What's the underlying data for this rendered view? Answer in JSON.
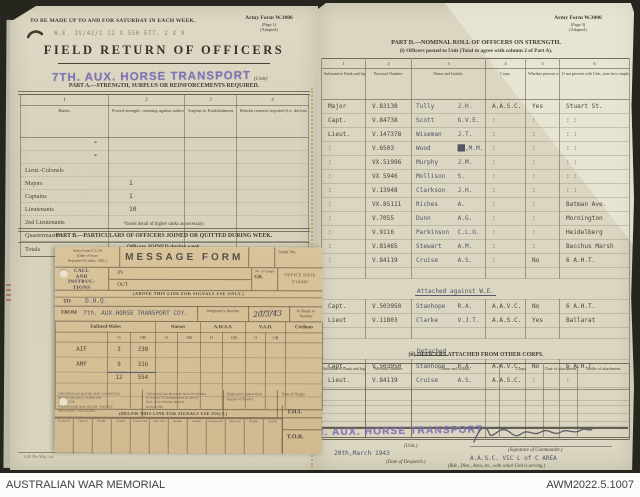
{
  "archive_bar": {
    "institution": "AUSTRALIAN WAR MEMORIAL",
    "accession": "AWM2022.5.1007"
  },
  "colors": {
    "stamp_purple": "#7d6cb6",
    "paper": "#d8d4be",
    "message_paper": "#d5bd96"
  },
  "left_page": {
    "top_note": "TO BE MADE UP TO AND FOR SATURDAY IN EACH WEEK.",
    "form_ref": {
      "no": "Army Form W.3006",
      "page": "(Page 1)",
      "adapted": "(Adapted)"
    },
    "pencil_note": "W.E. IV/42/1   12 X 550      ETT. 2 X 9",
    "title": "FIELD RETURN OF OFFICERS",
    "unit_stamp": "7TH. AUX. HORSE TRANSPORT",
    "unit_suffix": "(Unit)",
    "part_a": {
      "heading": "PART A.—STRENGTH, SURPLUS OR REINFORCEMENTS REQUIRED.",
      "col_numbers": [
        "1",
        "2",
        "3",
        "4"
      ],
      "col_labels": [
        "Ranks.",
        "Posted strength, counting against authorized establishment (excluding attached).",
        "Surplus to Establishment.",
        "Reinforcements required (i.e. deficits on establishment)."
      ],
      "leader_dots": "....      ....      ....",
      "rows": [
        {
          "rank": "",
          "star": "*",
          "posted": ""
        },
        {
          "rank": "",
          "star": "*",
          "posted": ""
        },
        {
          "rank": "Lieut.-Colonels",
          "posted": ""
        },
        {
          "rank": "Majors",
          "posted": "1"
        },
        {
          "rank": "Captains",
          "posted": "1"
        },
        {
          "rank": "Lieutenants",
          "posted": "10"
        },
        {
          "rank": "2nd Lieutenants",
          "posted": ""
        },
        {
          "rank": "Quartermasters",
          "posted": ""
        },
        {
          "rank": "Totals",
          "posted": "12",
          "totals": true
        }
      ],
      "footnote": "*Insert detail of higher ranks as necessary."
    },
    "part_b": {
      "heading": "PART B.—PARTICULARS OF OFFICERS JOINED OR QUITTED DURING WEEK.",
      "subheading": "Officers JOINED during week."
    },
    "printer_imprint": "A.H. Pke Mfg. Ltd."
  },
  "message_form": {
    "form_ref": [
      "Army Form C.2128",
      "(Date of issue",
      "Reprinted October, 1942.)"
    ],
    "title": "MESSAGE FORM",
    "serial_label": "Serial No.",
    "call_block": [
      "CALL",
      "AND",
      "INSTRUC-",
      "TIONS"
    ],
    "in_label": "IN",
    "out_label": "OUT",
    "groups_label": "No. of Groups",
    "gr_label": "GR.",
    "office_stamp_label": "OFFICE DATE STAMP",
    "above_note": "(ABOVE THIS LINE FOR SIGNALS USE ONLY.)",
    "to_label": "TO",
    "to_value": "D.H.Q.",
    "from_label": "FROM",
    "from_value": "7th. AUX.HORSE TRANSPORT COY.",
    "originator_label": "Originator's Number",
    "date_label": "Day's Date",
    "date_value": "20/3/43",
    "reply_label": "In Reply to Number",
    "strength": {
      "groups": [
        {
          "label": "Enlisted Males",
          "span": 3
        },
        {
          "label": "Nurses",
          "span": 2
        },
        {
          "label": "A.W.A.S.",
          "span": 2
        },
        {
          "label": "V.A.D.",
          "span": 2
        },
        {
          "label": "Civilians",
          "span": 1
        }
      ],
      "sub_labels": [
        "",
        "O",
        "OR",
        "O",
        "OR",
        "O",
        "OR",
        "O",
        "OR",
        ""
      ],
      "rows": [
        {
          "label": "AIF",
          "o": "3",
          "or": "238",
          "underline": false
        },
        {
          "label": "AMF",
          "o": "9",
          "or": "316",
          "underline": true
        }
      ],
      "total": {
        "o": "12",
        "or": "554"
      },
      "empty_rows": 2
    },
    "footer": {
      "left_lines": [
        "THIS MESSAGE MAY BE SENT AS WRITTEN",
        "BY ANY MEANS: [      ] WIRELESS.",
        "SIGNATURE.",
        "*ORIGINATOR MAY DELETE \"EXCEPT\"",
        "AND INSERT \"INCLUDING.\""
      ],
      "mid_lines": [
        "THIS MESSAGE MUST BE SENT IN CIPHER",
        "IF LIABLE TO INTERCEPTION OR TO",
        "FALL INTO ENEMY HANDS.",
        "SIGNATURE."
      ],
      "orig_lines": [
        "Originator's Instructions",
        "Degree of Priority"
      ],
      "time_label": "Time of Origin",
      "below_note": "(BELOW THIS LINE FOR SIGNALS USE ONLY.)",
      "signal_columns": [
        "System In",
        "Time In",
        "Reader",
        "Sender",
        "System Out",
        "Time Out",
        "Reader",
        "Sender",
        "System Out",
        "Time Out",
        "Reader",
        "Sender"
      ],
      "thi": "T.H.I.",
      "tor": "T.O.R."
    }
  },
  "right_page": {
    "form_ref": {
      "no": "Army Form W.3006",
      "page": "(Page 3)",
      "adapted": "(Adapted)"
    },
    "part_d": {
      "heading": "PART D.—NOMINAL ROLL OF OFFICERS ON STRENGTH.",
      "subheading": "(i) Officers posted to Unit (Total to agree with column 2 of Part A).",
      "col_numbers": [
        "1",
        "2",
        "3",
        "4",
        "5",
        "6"
      ],
      "col_labels": [
        "Substantive Rank and higher temporary rank, if held.",
        "Personal Number.",
        "Name and Initials.",
        "Corps.",
        "Whether present with Unit (insert Yes or No.)",
        "If not present with Unit, state how employed."
      ],
      "rows": [
        {
          "t": "r",
          "rank": "Major",
          "number": "V.83138",
          "name": "Tully",
          "initials": "J.H.",
          "corps": "A.A.S.C.",
          "present": "Yes",
          "employed": "Stuart St."
        },
        {
          "t": "r",
          "rank": "Capt.",
          "number": "V.84738",
          "name": "Scott",
          "initials": "G.V.E.",
          "corps": ":",
          "present": ":",
          "employed": ":   :"
        },
        {
          "t": "r",
          "rank": "Lieut.",
          "number": "V.147378",
          "name": "Wiseman",
          "initials": "J.T.",
          "corps": ":",
          "present": ":",
          "employed": ":   :"
        },
        {
          "t": "r",
          "rank": ":",
          "number": "V.6503",
          "name": "Wood",
          "initials": "██,M.M.",
          "corps": ":",
          "present": ":",
          "employed": ":   :"
        },
        {
          "t": "r",
          "rank": ":",
          "number": "VX.51996",
          "name": "Murphy",
          "initials": "J.M.",
          "corps": ":",
          "present": ":",
          "employed": ":   :"
        },
        {
          "t": "r",
          "rank": ":",
          "number": "VX 5946",
          "name": "Mollison",
          "initials": "S.",
          "corps": ":",
          "present": ":",
          "employed": ":   :"
        },
        {
          "t": "r",
          "rank": ":",
          "number": "V.13948",
          "name": "Clarkson",
          "initials": "J.H.",
          "corps": ":",
          "present": ":",
          "employed": ":   :"
        },
        {
          "t": "r",
          "rank": ":",
          "number": "VX.85111",
          "name": "Riches",
          "initials": "A.",
          "corps": ":",
          "present": ":",
          "employed": "Batman Ave."
        },
        {
          "t": "r",
          "rank": ":",
          "number": "V.7055",
          "name": "Dunn",
          "initials": "A.G.",
          "corps": ":",
          "present": ":",
          "employed": "Mornington"
        },
        {
          "t": "r",
          "rank": ":",
          "number": "V.9116",
          "name": "Parkinson",
          "initials": "C.L.G.",
          "corps": ":",
          "present": ":",
          "employed": "Heidelberg"
        },
        {
          "t": "r",
          "rank": ":",
          "number": "V.81465",
          "name": "Stewart",
          "initials": "A.M.",
          "corps": ":",
          "present": ":",
          "employed": "Bacchus Marsh"
        },
        {
          "t": "r",
          "rank": ":",
          "number": "V.84119",
          "name": "Cruise",
          "initials": "A.S.",
          "corps": ":",
          "present": "No",
          "employed": "6 A.H.T."
        },
        {
          "t": "g"
        },
        {
          "t": "s",
          "label": "Attached against W.E."
        },
        {
          "t": "r",
          "rank": "Capt.",
          "number": "V.503950",
          "name": "Stanhope",
          "initials": "R.A.",
          "corps": "A.A.V.C.",
          "present": "No",
          "employed": "6 A.H.T."
        },
        {
          "t": "r",
          "rank": "Lieut",
          "number": "V.11803",
          "name": "Clarke",
          "initials": "V.J.T.",
          "corps": "A.A.S.C.",
          "present": "Yes",
          "employed": "Ballarat"
        },
        {
          "t": "g"
        },
        {
          "t": "s",
          "label": "Detached"
        },
        {
          "t": "r",
          "rank": "Capt.",
          "number": "V.503950",
          "name": "Stanhope",
          "initials": "R.A.",
          "corps": "A.A.V.C.",
          "present": "No",
          "employed": "6 A.H.T."
        },
        {
          "t": "r",
          "rank": "Lieut.",
          "number": "V.84119",
          "name": "Cruise",
          "initials": "A.S.",
          "corps": "A.A.S.C.",
          "present": ":",
          "employed": ":"
        },
        {
          "t": "e"
        },
        {
          "t": "e"
        },
        {
          "t": "e"
        },
        {
          "t": "e"
        }
      ]
    },
    "part_d2": {
      "heading": "(ii) OFFICERS ATTACHED FROM OTHER CORPS.",
      "col_labels": [
        "Substantive Rank and higher temporary rank, if held.",
        "Personal Number.",
        "Name and Initials.",
        "Corps.",
        "Date of attachment.",
        "Nature of attachment."
      ],
      "empty_rows": 3
    },
    "footer": {
      "unit_stamp": "7TH. AUX. HORSE TRANSPORT",
      "unit_suffix": "(Unit.)",
      "date_value": "20th,March 1943",
      "date_label": "(Date of Despatch.)",
      "signature_label": "(Signature of Commander.)",
      "serving_value": "A.A.S.C. VIC L of C AREA",
      "serving_label": "(Bde., Divn., Area, etc., with which Unit is serving.)"
    }
  }
}
